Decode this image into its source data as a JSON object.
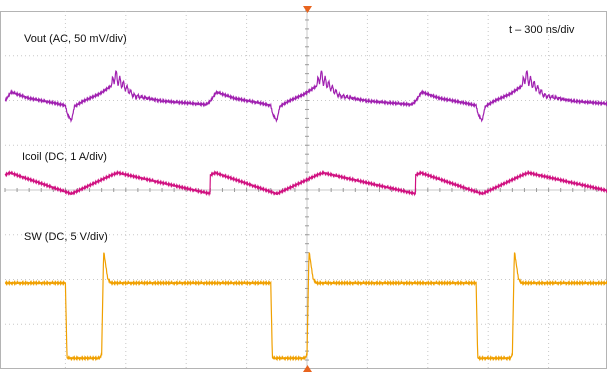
{
  "chart_data": {
    "type": "line",
    "title": "",
    "timebase_label": "t – 300 ns/div",
    "grid": true,
    "x_unit": "ns",
    "x_divisions": 10,
    "x_per_div": 300,
    "x_range": [
      0,
      3000
    ],
    "y_divisions": 8,
    "trigger_marker_position": "top and bottom center",
    "switching_period_ns": 1020,
    "channels": [
      {
        "name": "Vout",
        "label": "Vout (AC, 50 mV/div)",
        "coupling": "AC",
        "color": "#a020b0",
        "y_unit": "mV",
        "y_per_div": 50,
        "ringing_period_ns": 18,
        "points": [
          {
            "t": 0,
            "v": 0
          },
          {
            "t": 30,
            "v": 10
          },
          {
            "t": 120,
            "v": 3
          },
          {
            "t": 240,
            "v": -2
          },
          {
            "t": 300,
            "v": -5
          },
          {
            "t": 310,
            "v": -15
          },
          {
            "t": 330,
            "v": -22
          },
          {
            "t": 345,
            "v": -6
          },
          {
            "t": 390,
            "v": 0
          },
          {
            "t": 470,
            "v": 8
          },
          {
            "t": 535,
            "v": 18
          },
          {
            "t": 545,
            "v": 30
          },
          {
            "t": 560,
            "v": 24
          },
          {
            "t": 640,
            "v": 6
          },
          {
            "t": 780,
            "v": 0
          },
          {
            "t": 1000,
            "v": -4
          },
          {
            "t": 1020,
            "v": 0
          }
        ]
      },
      {
        "name": "Icoil",
        "label": "Icoil (DC, 1 A/div)",
        "coupling": "DC",
        "color": "#d01080",
        "y_unit": "A",
        "y_per_div": 1,
        "points": [
          {
            "t": 0,
            "v": 0.0
          },
          {
            "t": 25,
            "v": 0.05
          },
          {
            "t": 330,
            "v": -0.42
          },
          {
            "t": 530,
            "v": 0.0
          },
          {
            "t": 560,
            "v": 0.05
          },
          {
            "t": 1020,
            "v": -0.42
          }
        ]
      },
      {
        "name": "SW",
        "label": "SW (DC, 5 V/div)",
        "coupling": "DC",
        "color": "#f0a000",
        "y_unit": "V",
        "y_per_div": 5,
        "points": [
          {
            "t": 0,
            "v": 0
          },
          {
            "t": 300,
            "v": 0
          },
          {
            "t": 308,
            "v": -8.4
          },
          {
            "t": 470,
            "v": -8.4
          },
          {
            "t": 480,
            "v": -8.0
          },
          {
            "t": 490,
            "v": 3.6
          },
          {
            "t": 510,
            "v": 0.5
          },
          {
            "t": 525,
            "v": 0
          },
          {
            "t": 1020,
            "v": 0
          }
        ]
      }
    ]
  }
}
